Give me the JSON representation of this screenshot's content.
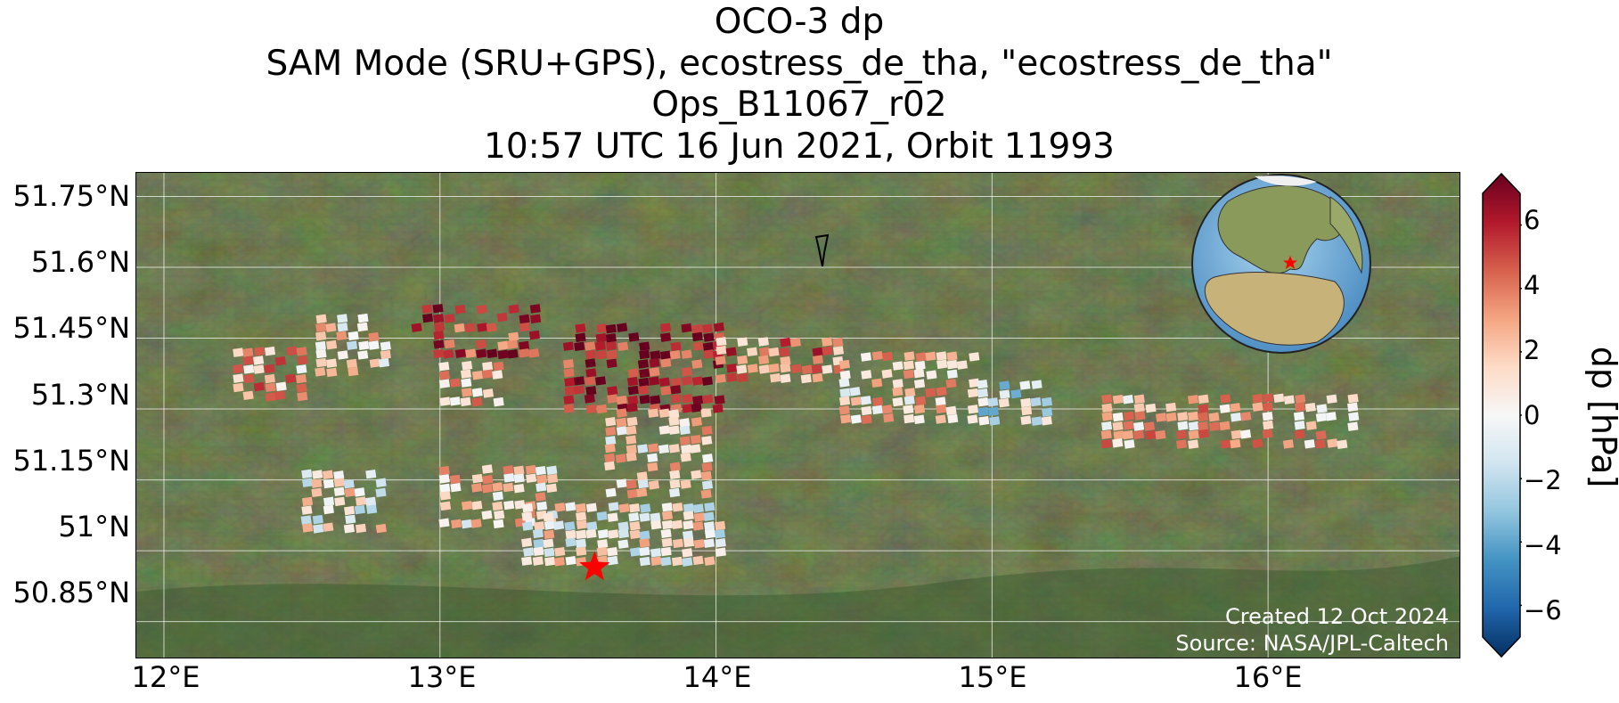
{
  "title": {
    "line1": "OCO-3 dp",
    "line2": "SAM Mode (SRU+GPS), ecostress_de_tha, \"ecostress_de_tha\"",
    "line3": "Ops_B11067_r02",
    "line4": "10:57 UTC 16 Jun 2021, Orbit 11993"
  },
  "map": {
    "lon_range": [
      11.9,
      16.7
    ],
    "lat_range": [
      50.77,
      51.8
    ],
    "lat_ticks": [
      "51.75°N",
      "51.6°N",
      "51.45°N",
      "51.3°N",
      "51.15°N",
      "51°N",
      "50.85°N"
    ],
    "lon_ticks": [
      "12°E",
      "13°E",
      "14°E",
      "15°E",
      "16°E"
    ],
    "target_marker": {
      "lon": 13.56,
      "lat": 50.965,
      "color": "#ff0000"
    },
    "credit_created": "Created 12 Oct 2024",
    "credit_source": "Source: NASA/JPL-Caltech",
    "inset_globe": {
      "marker_color": "#ff0000"
    }
  },
  "colorbar": {
    "label": "dp [hPa]",
    "range": [
      -7,
      7
    ],
    "ticks": [
      "6",
      "4",
      "2",
      "0",
      "−2",
      "−4",
      "−6"
    ],
    "colormap": [
      "#053061",
      "#2166ac",
      "#4393c3",
      "#92c5de",
      "#d1e5f0",
      "#f7f7f7",
      "#fddbc7",
      "#f4a582",
      "#d6604d",
      "#b2182b",
      "#67001f"
    ]
  },
  "chart_data": {
    "type": "heatmap",
    "x_unit": "degrees longitude",
    "y_unit": "degrees latitude",
    "value_unit": "hPa",
    "clusters": [
      {
        "lon": [
          12.25,
          12.5
        ],
        "lat": [
          51.33,
          51.43
        ],
        "dp": 2.5
      },
      {
        "lon": [
          12.55,
          12.8
        ],
        "lat": [
          51.37,
          51.5
        ],
        "dp": 0.8
      },
      {
        "lon": [
          12.9,
          13.35
        ],
        "lat": [
          51.42,
          51.52
        ],
        "dp": 5.0
      },
      {
        "lon": [
          13.0,
          13.2
        ],
        "lat": [
          51.32,
          51.4
        ],
        "dp": 2.5
      },
      {
        "lon": [
          13.45,
          14.0
        ],
        "lat": [
          51.3,
          51.48
        ],
        "dp": 6.0
      },
      {
        "lon": [
          13.6,
          13.95
        ],
        "lat": [
          51.12,
          51.3
        ],
        "dp": 1.2
      },
      {
        "lon": [
          14.0,
          14.45
        ],
        "lat": [
          51.37,
          51.45
        ],
        "dp": 3.5
      },
      {
        "lon": [
          14.45,
          14.95
        ],
        "lat": [
          51.28,
          51.42
        ],
        "dp": 1.5
      },
      {
        "lon": [
          14.95,
          15.2
        ],
        "lat": [
          51.28,
          51.36
        ],
        "dp": -1.0
      },
      {
        "lon": [
          15.4,
          16.3
        ],
        "lat": [
          51.22,
          51.33
        ],
        "dp": 2.0
      },
      {
        "lon": [
          12.5,
          12.8
        ],
        "lat": [
          51.05,
          51.17
        ],
        "dp": 0.5
      },
      {
        "lon": [
          13.0,
          13.4
        ],
        "lat": [
          51.05,
          51.18
        ],
        "dp": 1.0
      },
      {
        "lon": [
          13.3,
          14.0
        ],
        "lat": [
          50.97,
          51.1
        ],
        "dp": 0.3
      }
    ]
  }
}
